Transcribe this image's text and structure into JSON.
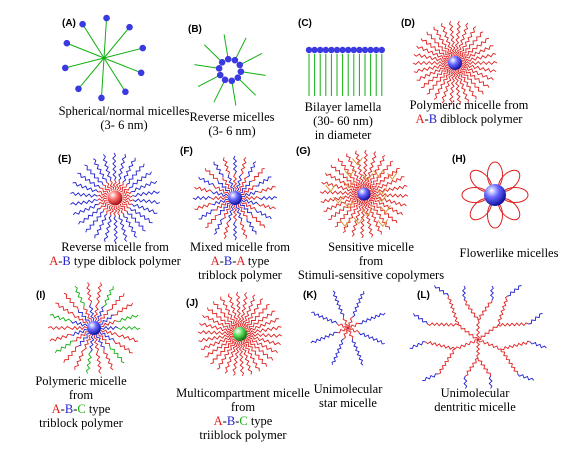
{
  "panels": [
    {
      "id": "A",
      "label": "(A)",
      "caption": [
        "Spherical/normal micelles",
        "(3- 6 nm)"
      ]
    },
    {
      "id": "B",
      "label": "(B)",
      "caption": [
        "Reverse micelles",
        "(3- 6 nm)"
      ]
    },
    {
      "id": "C",
      "label": "(C)",
      "caption": [
        "Bilayer lamella",
        "(30- 60 nm)",
        "in diameter"
      ]
    },
    {
      "id": "D",
      "label": "(D)",
      "caption": [
        "Polymeric micelle from"
      ],
      "caption_parts": {
        "a": "A",
        "dash": "-",
        "b": "B",
        "rest": " diblock polymer"
      }
    },
    {
      "id": "E",
      "label": "(E)",
      "caption": [
        "Reverse micelle from"
      ],
      "caption_parts": {
        "a": "A",
        "dash": "-",
        "b": "B",
        "rest": " type diblock polymer"
      }
    },
    {
      "id": "F",
      "label": "(F)",
      "caption": [
        "Mixed micelle from",
        "triblock polymer"
      ],
      "caption_parts": {
        "a": "A",
        "dash1": "-",
        "b": "B",
        "dash2": "-",
        "a2": "A",
        "rest": " type"
      }
    },
    {
      "id": "G",
      "label": "(G)",
      "caption": [
        "Sensitive micelle",
        "from",
        "Stimuli-sensitive copolymers"
      ]
    },
    {
      "id": "H",
      "label": "(H)",
      "caption": [
        "Flowerlike micelles"
      ]
    },
    {
      "id": "I",
      "label": "(I)",
      "caption": [
        "Polymeric micelle",
        "from",
        "triblock polymer"
      ],
      "caption_parts": {
        "a": "A",
        "dash1": "-",
        "b": "B",
        "dash2": "-",
        "c": "C",
        "rest": " type"
      }
    },
    {
      "id": "J",
      "label": "(J)",
      "caption": [
        "Multicompartment micelle",
        "from",
        "triiblock polymer"
      ],
      "caption_parts": {
        "a": "A",
        "dash1": "-",
        "b": "B",
        "dash2": "-",
        "c": "C",
        "rest": " type"
      }
    },
    {
      "id": "K",
      "label": "(K)",
      "caption": [
        "Unimolecular",
        "star micelle"
      ]
    },
    {
      "id": "L",
      "label": "(L)",
      "caption": [
        "Unimolecular",
        "dentritic micelle"
      ]
    }
  ],
  "colors": {
    "red": "#e02020",
    "blue": "#2020d0",
    "green": "#12b012",
    "bead": "#3a3ae0",
    "orange": "#d89a40"
  }
}
